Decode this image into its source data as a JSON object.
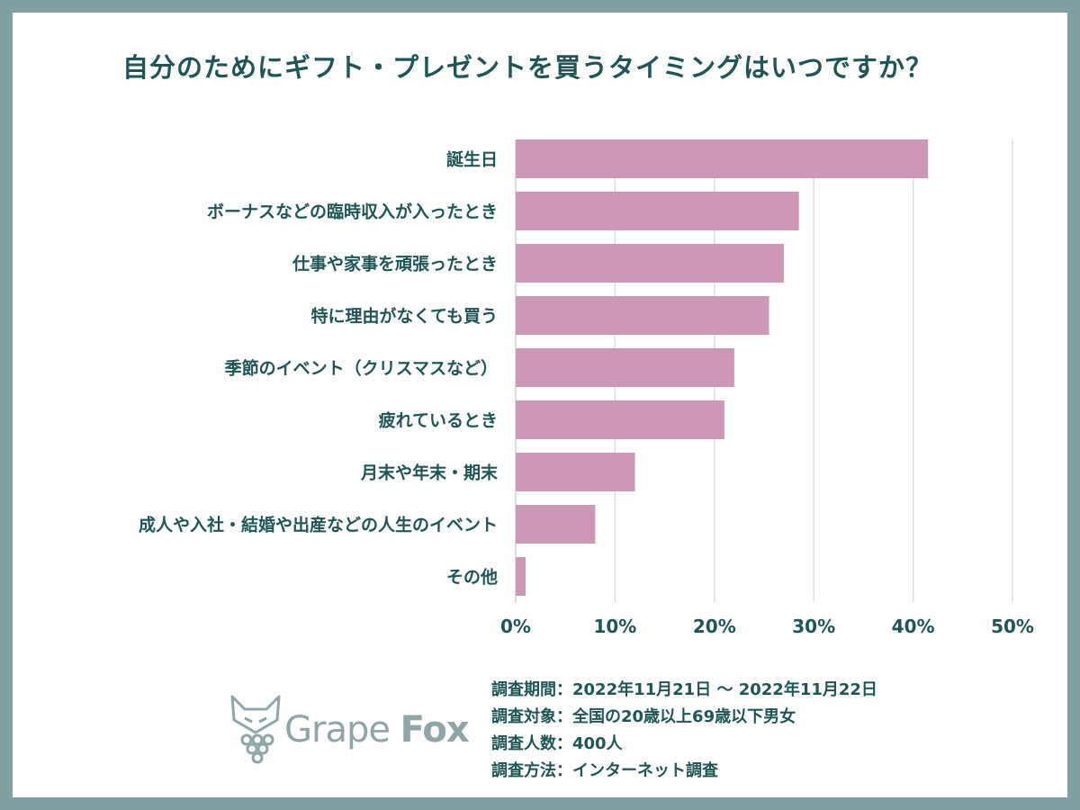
{
  "title": "自分のためにギフト・プレゼントを買うタイミングはいつですか？",
  "chart_data": {
    "type": "bar",
    "orientation": "horizontal",
    "categories": [
      "誕生日",
      "ボーナスなどの臨時収入が入ったとき",
      "仕事や家事を頑張ったとき",
      "特に理由がなくても買う",
      "季節のイベント（クリスマスなど）",
      "疲れているとき",
      "月末や年末・期末",
      "成人や入社・結婚や出産などの人生のイベント",
      "その他"
    ],
    "values": [
      41.5,
      28.5,
      27,
      25.5,
      22,
      21,
      12,
      8,
      1
    ],
    "xlim": [
      0,
      50
    ],
    "xticks": [
      "0%",
      "10%",
      "20%",
      "30%",
      "40%",
      "50%"
    ],
    "grid": true,
    "bar_color": "#cc98b5",
    "grid_color": "#d7e2e2"
  },
  "footer": {
    "period": "調査期間：2022年11月21日 〜 2022年11月22日",
    "target": "調査対象：全国の20歳以上69歳以下男女",
    "count": "調査人数：400人",
    "method": "調査方法：インターネット調査"
  },
  "logo": {
    "word1": "Grape",
    "word2": "Fox"
  },
  "colors": {
    "frame": "#7f9fa1",
    "text": "#1f5555",
    "logo": "#8fa5a7"
  }
}
